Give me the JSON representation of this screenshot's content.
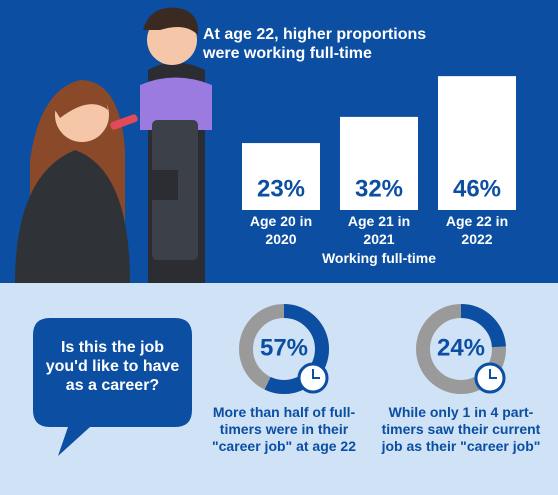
{
  "chart_data": [
    {
      "type": "bar",
      "title": "At age 22, higher proportions were working full-time",
      "categories": [
        "Age 20 in 2020",
        "Age 21 in 2021",
        "Age 22 in 2022"
      ],
      "values": [
        23,
        32,
        46
      ],
      "value_labels": [
        "23%",
        "32%",
        "46%"
      ],
      "x_label": "Working full-time",
      "color": "#ffffff"
    },
    {
      "type": "donut",
      "values": [
        57
      ],
      "value_labels": [
        "57%"
      ],
      "color": "#0b4ea2",
      "caption": "More than half of full-timers were in their \"career job\" at age 22"
    },
    {
      "type": "donut",
      "values": [
        24
      ],
      "value_labels": [
        "24%"
      ],
      "color": "#0b4ea2",
      "caption": "While only 1 in 4 part-timers saw their current job as their \"career job\""
    }
  ],
  "question": "Is this the job you'd like to have as a career?"
}
